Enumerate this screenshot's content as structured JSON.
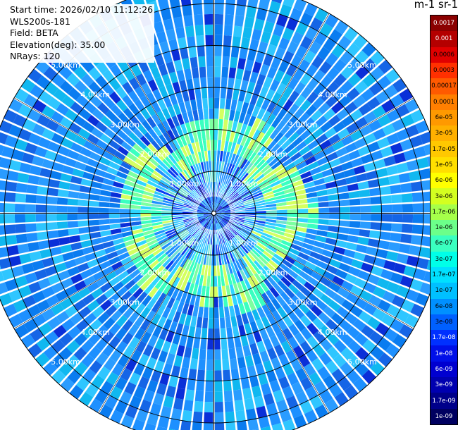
{
  "info": {
    "start_time": "Start time: 2026/02/10 11:12:26",
    "instrument": "WLS200s-181",
    "field": "Field: BETA",
    "elevation": "Elevation(deg): 35.00",
    "nrays": "NRays: 120"
  },
  "colorbar": {
    "title": "m-1 sr-1",
    "ticks": [
      "0.0017",
      "0.001",
      "0.0006",
      "0.0003",
      "0.00017",
      "0.0001",
      "6e-05",
      "3e-05",
      "1.7e-05",
      "1e-05",
      "6e-06",
      "3e-06",
      "1.7e-06",
      "1e-06",
      "6e-07",
      "3e-07",
      "1.7e-07",
      "1e-07",
      "6e-08",
      "3e-08",
      "1.7e-08",
      "1e-08",
      "6e-09",
      "3e-09",
      "1.7e-09",
      "1e-09"
    ],
    "colors": [
      "#8b0000",
      "#b40000",
      "#e00000",
      "#ff3000",
      "#ff5a00",
      "#ff7f00",
      "#ff9900",
      "#ffb000",
      "#ffc800",
      "#ffdf00",
      "#ffff00",
      "#d4ff20",
      "#a6ff4a",
      "#6cff8a",
      "#3affc0",
      "#00ffe8",
      "#00e0ff",
      "#00c0ff",
      "#0090ff",
      "#0060ff",
      "#0030ff",
      "#0010e8",
      "#0000d0",
      "#0000b0",
      "#00008a",
      "#000060"
    ],
    "tick_text_colors": [
      "#ffffff",
      "#ffffff",
      "#000000",
      "#000000",
      "#000000",
      "#000000",
      "#000000",
      "#000000",
      "#000000",
      "#000000",
      "#000000",
      "#000000",
      "#000000",
      "#000000",
      "#000000",
      "#000000",
      "#000000",
      "#000000",
      "#000000",
      "#000000",
      "#ffffff",
      "#ffffff",
      "#ffffff",
      "#ffffff",
      "#ffffff",
      "#ffffff"
    ]
  },
  "chart_data": {
    "type": "heatmap",
    "projection": "polar (PPI scan)",
    "field": "BETA",
    "units": "m-1 sr-1",
    "nrays": 120,
    "max_range_km": 5.5,
    "range_rings_km": [
      1,
      2,
      3,
      4,
      5
    ],
    "ring_labels": [
      "1.00km",
      "2.00km",
      "3.00km",
      "4.00km",
      "5.00km"
    ],
    "ring_label_angles_deg": [
      135,
      45,
      225,
      315
    ],
    "enhanced_band_km": [
      1.5,
      2.2
    ],
    "background_range": "1e-07 to 3e-08",
    "band_range": "6e-07 to 3e-06",
    "near_center_range": "1.7e-08 to 1e-09"
  }
}
